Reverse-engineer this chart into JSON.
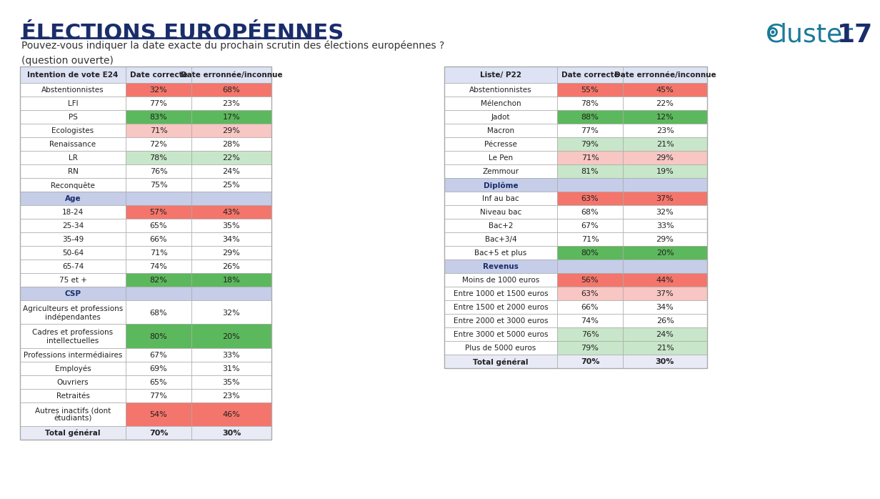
{
  "title": "ÉLECTIONS EUROPÉENNES",
  "subtitle": "Pouvez-vous indiquer la date exacte du prochain scrutin des élections européennes ?\n(question ouverte)",
  "bg_color": "#ffffff",
  "title_color": "#1a2d6b",
  "subtitle_color": "#333333",
  "table1": {
    "header": [
      "Intention de vote E24",
      "Date correcte",
      "Date erronnée/inconnue"
    ],
    "rows": [
      {
        "label": "Abstentionnistes",
        "correct": "32%",
        "incorrect": "68%",
        "c_color": "red_strong",
        "i_color": "red_strong"
      },
      {
        "label": "LFI",
        "correct": "77%",
        "incorrect": "23%",
        "c_color": "none",
        "i_color": "none"
      },
      {
        "label": "PS",
        "correct": "83%",
        "incorrect": "17%",
        "c_color": "green_strong",
        "i_color": "green_strong"
      },
      {
        "label": "Ecologistes",
        "correct": "71%",
        "incorrect": "29%",
        "c_color": "pink_light",
        "i_color": "pink_light"
      },
      {
        "label": "Renaissance",
        "correct": "72%",
        "incorrect": "28%",
        "c_color": "none",
        "i_color": "none"
      },
      {
        "label": "LR",
        "correct": "78%",
        "incorrect": "22%",
        "c_color": "green_light",
        "i_color": "green_light"
      },
      {
        "label": "RN",
        "correct": "76%",
        "incorrect": "24%",
        "c_color": "none",
        "i_color": "none"
      },
      {
        "label": "Reconquête",
        "correct": "75%",
        "incorrect": "25%",
        "c_color": "none",
        "i_color": "none"
      },
      {
        "label": "Age",
        "correct": "",
        "incorrect": "",
        "c_color": "header_blue",
        "i_color": "header_blue",
        "is_section": true
      },
      {
        "label": "18-24",
        "correct": "57%",
        "incorrect": "43%",
        "c_color": "red_strong",
        "i_color": "red_strong"
      },
      {
        "label": "25-34",
        "correct": "65%",
        "incorrect": "35%",
        "c_color": "none",
        "i_color": "none"
      },
      {
        "label": "35-49",
        "correct": "66%",
        "incorrect": "34%",
        "c_color": "none",
        "i_color": "none"
      },
      {
        "label": "50-64",
        "correct": "71%",
        "incorrect": "29%",
        "c_color": "none",
        "i_color": "none"
      },
      {
        "label": "65-74",
        "correct": "74%",
        "incorrect": "26%",
        "c_color": "none",
        "i_color": "none"
      },
      {
        "label": "75 et +",
        "correct": "82%",
        "incorrect": "18%",
        "c_color": "green_strong",
        "i_color": "green_strong"
      },
      {
        "label": "CSP",
        "correct": "",
        "incorrect": "",
        "c_color": "header_blue",
        "i_color": "header_blue",
        "is_section": true
      },
      {
        "label": "Agriculteurs et professions\nindépendantes",
        "correct": "68%",
        "incorrect": "32%",
        "c_color": "none",
        "i_color": "none",
        "tall": true
      },
      {
        "label": "Cadres et professions\nintellectuelles",
        "correct": "80%",
        "incorrect": "20%",
        "c_color": "green_strong",
        "i_color": "green_strong",
        "tall": true
      },
      {
        "label": "Professions intermédiaires",
        "correct": "67%",
        "incorrect": "33%",
        "c_color": "none",
        "i_color": "none"
      },
      {
        "label": "Employés",
        "correct": "69%",
        "incorrect": "31%",
        "c_color": "none",
        "i_color": "none"
      },
      {
        "label": "Ouvriers",
        "correct": "65%",
        "incorrect": "35%",
        "c_color": "none",
        "i_color": "none"
      },
      {
        "label": "Retraités",
        "correct": "77%",
        "incorrect": "23%",
        "c_color": "none",
        "i_color": "none"
      },
      {
        "label": "Autres inactifs (dont\nétudiants)",
        "correct": "54%",
        "incorrect": "46%",
        "c_color": "red_strong",
        "i_color": "red_strong",
        "tall": true
      },
      {
        "label": "Total général",
        "correct": "70%",
        "incorrect": "30%",
        "c_color": "none",
        "i_color": "none",
        "is_total": true
      }
    ]
  },
  "table2": {
    "header": [
      "Liste/ P22",
      "Date correcte",
      "Date erronnée/inconnue"
    ],
    "rows": [
      {
        "label": "Abstentionnistes",
        "correct": "55%",
        "incorrect": "45%",
        "c_color": "red_strong",
        "i_color": "red_strong"
      },
      {
        "label": "Mélenchon",
        "correct": "78%",
        "incorrect": "22%",
        "c_color": "none",
        "i_color": "none"
      },
      {
        "label": "Jadot",
        "correct": "88%",
        "incorrect": "12%",
        "c_color": "green_strong",
        "i_color": "green_strong"
      },
      {
        "label": "Macron",
        "correct": "77%",
        "incorrect": "23%",
        "c_color": "none",
        "i_color": "none"
      },
      {
        "label": "Pécresse",
        "correct": "79%",
        "incorrect": "21%",
        "c_color": "green_light",
        "i_color": "green_light"
      },
      {
        "label": "Le Pen",
        "correct": "71%",
        "incorrect": "29%",
        "c_color": "pink_light",
        "i_color": "pink_light"
      },
      {
        "label": "Zemmour",
        "correct": "81%",
        "incorrect": "19%",
        "c_color": "green_light",
        "i_color": "green_light"
      },
      {
        "label": "Diplôme",
        "correct": "",
        "incorrect": "",
        "c_color": "header_blue",
        "i_color": "header_blue",
        "is_section": true
      },
      {
        "label": "Inf au bac",
        "correct": "63%",
        "incorrect": "37%",
        "c_color": "red_strong",
        "i_color": "red_strong"
      },
      {
        "label": "Niveau bac",
        "correct": "68%",
        "incorrect": "32%",
        "c_color": "none",
        "i_color": "none"
      },
      {
        "label": "Bac+2",
        "correct": "67%",
        "incorrect": "33%",
        "c_color": "none",
        "i_color": "none"
      },
      {
        "label": "Bac+3/4",
        "correct": "71%",
        "incorrect": "29%",
        "c_color": "none",
        "i_color": "none"
      },
      {
        "label": "Bac+5 et plus",
        "correct": "80%",
        "incorrect": "20%",
        "c_color": "green_strong",
        "i_color": "green_strong"
      },
      {
        "label": "Revenus",
        "correct": "",
        "incorrect": "",
        "c_color": "header_blue",
        "i_color": "header_blue",
        "is_section": true
      },
      {
        "label": "Moins de 1000 euros",
        "correct": "56%",
        "incorrect": "44%",
        "c_color": "red_strong",
        "i_color": "red_strong"
      },
      {
        "label": "Entre 1000 et 1500 euros",
        "correct": "63%",
        "incorrect": "37%",
        "c_color": "pink_light",
        "i_color": "pink_light"
      },
      {
        "label": "Entre 1500 et 2000 euros",
        "correct": "66%",
        "incorrect": "34%",
        "c_color": "none",
        "i_color": "none"
      },
      {
        "label": "Entre 2000 et 3000 euros",
        "correct": "74%",
        "incorrect": "26%",
        "c_color": "none",
        "i_color": "none"
      },
      {
        "label": "Entre 3000 et 5000 euros",
        "correct": "76%",
        "incorrect": "24%",
        "c_color": "green_light",
        "i_color": "green_light"
      },
      {
        "label": "Plus de 5000 euros",
        "correct": "79%",
        "incorrect": "21%",
        "c_color": "green_light",
        "i_color": "green_light"
      },
      {
        "label": "Total général",
        "correct": "70%",
        "incorrect": "30%",
        "c_color": "none",
        "i_color": "none",
        "is_total": true
      }
    ]
  },
  "colors": {
    "red_strong": "#f4756b",
    "green_strong": "#5cb85c",
    "pink_light": "#f8c6c3",
    "green_light": "#c8e6c9",
    "header_blue": "#c5cde8",
    "header_row": "#dde3f5",
    "none": "#ffffff",
    "total_row": "#e8eaf6",
    "border": "#aaaaaa",
    "text_dark": "#222222",
    "section_text": "#1a2d6b"
  },
  "logo": {
    "c_color": "#1a7a9a",
    "num_color": "#1a2d6b",
    "text": "luster",
    "number": "17"
  }
}
